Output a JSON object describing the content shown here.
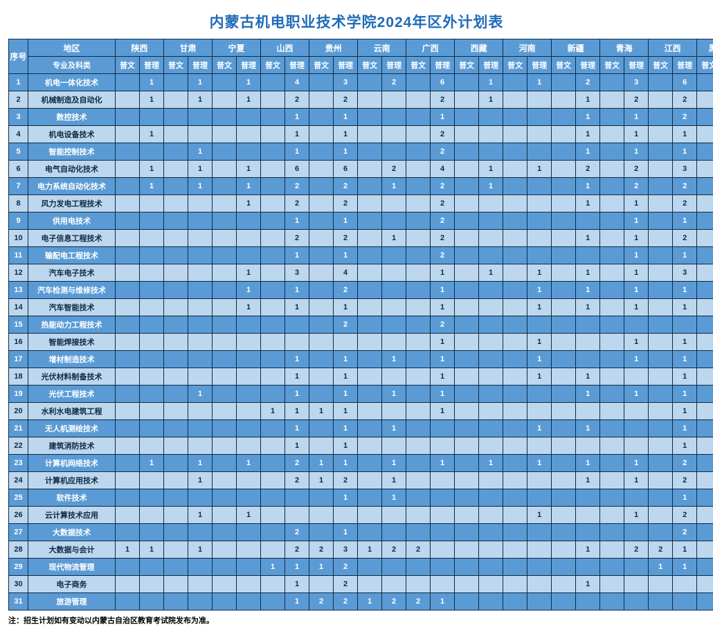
{
  "title": "内蒙古机电职业技术学院2024年区外计划表",
  "footnote": "注：招生计划如有变动以内蒙古自治区教育考试院发布为准。",
  "header": {
    "index_label": "序号",
    "region_label": "地区",
    "major_label": "专业及科类",
    "wen": "普文",
    "li": "普理",
    "regions": [
      "陕西",
      "甘肃",
      "宁夏",
      "山西",
      "贵州",
      "云南",
      "广西",
      "西藏",
      "河南",
      "新疆",
      "青海",
      "江西",
      "黑龙江"
    ]
  },
  "style": {
    "title_color": "#1f6bb8",
    "header_bg": "#5a9bd5",
    "row_odd_bg": "#5a9bd5",
    "row_even_bg": "#bdd7ee",
    "border_color": "#0d2a45",
    "title_fontsize": 21,
    "cell_fontsize": 11,
    "header_fontsize": 12
  },
  "rows": [
    {
      "idx": 1,
      "major": "机电一体化技术",
      "vals": [
        "",
        "1",
        "",
        "1",
        "",
        "1",
        "",
        "4",
        "",
        "3",
        "",
        "2",
        "",
        "6",
        "",
        "1",
        "",
        "1",
        "",
        "2",
        "",
        "3",
        "",
        "6",
        "",
        "2"
      ]
    },
    {
      "idx": 2,
      "major": "机械制造及自动化",
      "vals": [
        "",
        "1",
        "",
        "1",
        "",
        "1",
        "",
        "2",
        "",
        "2",
        "",
        "",
        "",
        "2",
        "",
        "1",
        "",
        "",
        "",
        "1",
        "",
        "2",
        "",
        "2",
        "",
        "1"
      ]
    },
    {
      "idx": 3,
      "major": "数控技术",
      "vals": [
        "",
        "",
        "",
        "",
        "",
        "",
        "",
        "1",
        "",
        "1",
        "",
        "",
        "",
        "1",
        "",
        "",
        "",
        "",
        "",
        "1",
        "",
        "1",
        "",
        "2",
        "",
        "2"
      ]
    },
    {
      "idx": 4,
      "major": "机电设备技术",
      "vals": [
        "",
        "1",
        "",
        "",
        "",
        "",
        "",
        "1",
        "",
        "1",
        "",
        "",
        "",
        "2",
        "",
        "",
        "",
        "",
        "",
        "1",
        "",
        "1",
        "",
        "1",
        "",
        "1"
      ]
    },
    {
      "idx": 5,
      "major": "智能控制技术",
      "vals": [
        "",
        "",
        "",
        "1",
        "",
        "",
        "",
        "1",
        "",
        "1",
        "",
        "",
        "",
        "2",
        "",
        "",
        "",
        "",
        "",
        "1",
        "",
        "1",
        "",
        "1",
        "",
        "1"
      ]
    },
    {
      "idx": 6,
      "major": "电气自动化技术",
      "vals": [
        "",
        "1",
        "",
        "1",
        "",
        "1",
        "",
        "6",
        "",
        "6",
        "",
        "2",
        "",
        "4",
        "",
        "1",
        "",
        "1",
        "",
        "2",
        "",
        "2",
        "",
        "3",
        "",
        "3"
      ]
    },
    {
      "idx": 7,
      "major": "电力系统自动化技术",
      "vals": [
        "",
        "1",
        "",
        "1",
        "",
        "1",
        "",
        "2",
        "",
        "2",
        "",
        "1",
        "",
        "2",
        "",
        "1",
        "",
        "",
        "",
        "1",
        "",
        "2",
        "",
        "2",
        "",
        "1"
      ]
    },
    {
      "idx": 8,
      "major": "风力发电工程技术",
      "vals": [
        "",
        "",
        "",
        "",
        "",
        "1",
        "",
        "2",
        "",
        "2",
        "",
        "",
        "",
        "2",
        "",
        "",
        "",
        "",
        "",
        "1",
        "",
        "1",
        "",
        "2",
        "",
        "1"
      ]
    },
    {
      "idx": 9,
      "major": "供用电技术",
      "vals": [
        "",
        "",
        "",
        "",
        "",
        "",
        "",
        "1",
        "",
        "1",
        "",
        "",
        "",
        "2",
        "",
        "",
        "",
        "",
        "",
        "",
        "",
        "1",
        "",
        "1",
        "",
        "1"
      ]
    },
    {
      "idx": 10,
      "major": "电子信息工程技术",
      "vals": [
        "",
        "",
        "",
        "",
        "",
        "",
        "",
        "2",
        "",
        "2",
        "",
        "1",
        "",
        "2",
        "",
        "",
        "",
        "",
        "",
        "1",
        "",
        "1",
        "",
        "2",
        "",
        "1"
      ]
    },
    {
      "idx": 11,
      "major": "输配电工程技术",
      "vals": [
        "",
        "",
        "",
        "",
        "",
        "",
        "",
        "1",
        "",
        "1",
        "",
        "",
        "",
        "2",
        "",
        "",
        "",
        "",
        "",
        "",
        "",
        "1",
        "",
        "1",
        "",
        "1"
      ]
    },
    {
      "idx": 12,
      "major": "汽车电子技术",
      "vals": [
        "",
        "",
        "",
        "",
        "",
        "1",
        "",
        "3",
        "",
        "4",
        "",
        "",
        "",
        "1",
        "",
        "1",
        "",
        "1",
        "",
        "1",
        "",
        "1",
        "",
        "3",
        "",
        "3"
      ]
    },
    {
      "idx": 13,
      "major": "汽车检测与维修技术",
      "vals": [
        "",
        "",
        "",
        "",
        "",
        "1",
        "",
        "1",
        "",
        "2",
        "",
        "",
        "",
        "1",
        "",
        "",
        "",
        "1",
        "",
        "1",
        "",
        "1",
        "",
        "1",
        "",
        "1"
      ]
    },
    {
      "idx": 14,
      "major": "汽车智能技术",
      "vals": [
        "",
        "",
        "",
        "",
        "",
        "1",
        "",
        "1",
        "",
        "1",
        "",
        "",
        "",
        "1",
        "",
        "",
        "",
        "1",
        "",
        "1",
        "",
        "1",
        "",
        "1",
        "",
        "1"
      ]
    },
    {
      "idx": 15,
      "major": "热能动力工程技术",
      "vals": [
        "",
        "",
        "",
        "",
        "",
        "",
        "",
        "",
        "",
        "2",
        "",
        "",
        "",
        "2",
        "",
        "",
        "",
        "",
        "",
        "",
        "",
        "",
        "",
        "",
        "",
        ""
      ]
    },
    {
      "idx": 16,
      "major": "智能焊接技术",
      "vals": [
        "",
        "",
        "",
        "",
        "",
        "",
        "",
        "",
        "",
        "",
        "",
        "",
        "",
        "1",
        "",
        "",
        "",
        "1",
        "",
        "",
        "",
        "1",
        "",
        "1",
        "",
        ""
      ]
    },
    {
      "idx": 17,
      "major": "增材制造技术",
      "vals": [
        "",
        "",
        "",
        "",
        "",
        "",
        "",
        "1",
        "",
        "1",
        "",
        "1",
        "",
        "1",
        "",
        "",
        "",
        "1",
        "",
        "",
        "",
        "1",
        "",
        "1",
        "",
        ""
      ]
    },
    {
      "idx": 18,
      "major": "光伏材料制备技术",
      "vals": [
        "",
        "",
        "",
        "",
        "",
        "",
        "",
        "1",
        "",
        "1",
        "",
        "",
        "",
        "1",
        "",
        "",
        "",
        "1",
        "",
        "1",
        "",
        "",
        "",
        "1",
        "",
        ""
      ]
    },
    {
      "idx": 19,
      "major": "光伏工程技术",
      "vals": [
        "",
        "",
        "",
        "1",
        "",
        "",
        "",
        "1",
        "",
        "1",
        "",
        "1",
        "",
        "1",
        "",
        "",
        "",
        "",
        "",
        "1",
        "",
        "1",
        "",
        "1",
        "",
        ""
      ]
    },
    {
      "idx": 20,
      "major": "水利水电建筑工程",
      "vals": [
        "",
        "",
        "",
        "",
        "",
        "",
        "1",
        "1",
        "1",
        "1",
        "",
        "",
        "",
        "1",
        "",
        "",
        "",
        "",
        "",
        "",
        "",
        "",
        "",
        "1",
        "",
        ""
      ]
    },
    {
      "idx": 21,
      "major": "无人机测绘技术",
      "vals": [
        "",
        "",
        "",
        "",
        "",
        "",
        "",
        "1",
        "",
        "1",
        "",
        "1",
        "",
        "",
        "",
        "",
        "",
        "1",
        "",
        "1",
        "",
        "",
        "",
        "1",
        "",
        ""
      ]
    },
    {
      "idx": 22,
      "major": "建筑消防技术",
      "vals": [
        "",
        "",
        "",
        "",
        "",
        "",
        "",
        "1",
        "",
        "1",
        "",
        "",
        "",
        "",
        "",
        "",
        "",
        "",
        "",
        "",
        "",
        "",
        "",
        "1",
        "",
        ""
      ]
    },
    {
      "idx": 23,
      "major": "计算机网络技术",
      "vals": [
        "",
        "1",
        "",
        "1",
        "",
        "1",
        "",
        "2",
        "1",
        "1",
        "",
        "1",
        "",
        "1",
        "",
        "1",
        "",
        "1",
        "",
        "1",
        "",
        "1",
        "",
        "2",
        "",
        ""
      ]
    },
    {
      "idx": 24,
      "major": "计算机应用技术",
      "vals": [
        "",
        "",
        "",
        "1",
        "",
        "",
        "",
        "2",
        "1",
        "2",
        "",
        "1",
        "",
        "",
        "",
        "",
        "",
        "",
        "",
        "1",
        "",
        "1",
        "",
        "2",
        "",
        ""
      ]
    },
    {
      "idx": 25,
      "major": "软件技术",
      "vals": [
        "",
        "",
        "",
        "",
        "",
        "",
        "",
        "",
        "",
        "1",
        "",
        "1",
        "",
        "",
        "",
        "",
        "",
        "",
        "",
        "",
        "",
        "",
        "",
        "1",
        "",
        ""
      ]
    },
    {
      "idx": 26,
      "major": "云计算技术应用",
      "vals": [
        "",
        "",
        "",
        "1",
        "",
        "1",
        "",
        "",
        "",
        "",
        "",
        "",
        "",
        "",
        "",
        "",
        "",
        "1",
        "",
        "",
        "",
        "1",
        "",
        "2",
        "",
        ""
      ]
    },
    {
      "idx": 27,
      "major": "大数据技术",
      "vals": [
        "",
        "",
        "",
        "",
        "",
        "",
        "",
        "2",
        "",
        "1",
        "",
        "",
        "",
        "",
        "",
        "",
        "",
        "",
        "",
        "",
        "",
        "",
        "",
        "2",
        "",
        ""
      ]
    },
    {
      "idx": 28,
      "major": "大数据与会计",
      "vals": [
        "1",
        "1",
        "",
        "1",
        "",
        "",
        "",
        "2",
        "2",
        "3",
        "1",
        "2",
        "2",
        "",
        "",
        "",
        "",
        "",
        "",
        "1",
        "",
        "2",
        "2",
        "1",
        "",
        ""
      ]
    },
    {
      "idx": 29,
      "major": "现代物流管理",
      "vals": [
        "",
        "",
        "",
        "",
        "",
        "",
        "1",
        "1",
        "1",
        "2",
        "",
        "",
        "",
        "",
        "",
        "",
        "",
        "",
        "",
        "",
        "",
        "",
        "1",
        "1",
        "",
        ""
      ]
    },
    {
      "idx": 30,
      "major": "电子商务",
      "vals": [
        "",
        "",
        "",
        "",
        "",
        "",
        "",
        "1",
        "",
        "2",
        "",
        "",
        "",
        "",
        "",
        "",
        "",
        "",
        "",
        "1",
        "",
        "",
        "",
        "",
        "",
        ""
      ]
    },
    {
      "idx": 31,
      "major": "旅游管理",
      "vals": [
        "",
        "",
        "",
        "",
        "",
        "",
        "",
        "1",
        "2",
        "2",
        "1",
        "2",
        "2",
        "1",
        "",
        "",
        "",
        "",
        "",
        "",
        "",
        "",
        "",
        "",
        "",
        ""
      ]
    }
  ]
}
